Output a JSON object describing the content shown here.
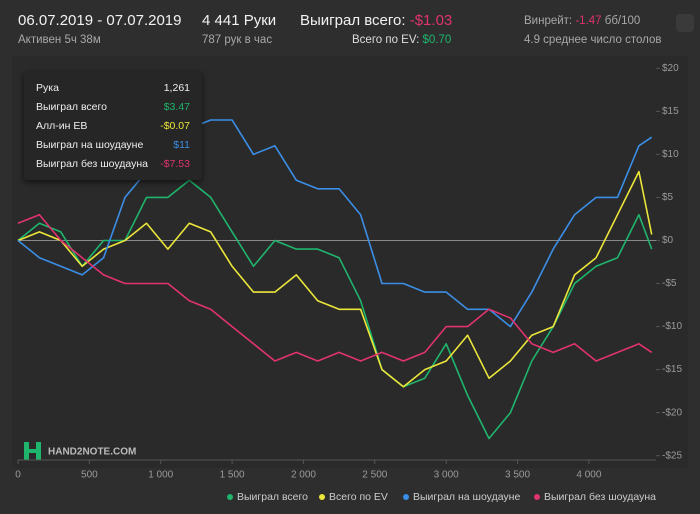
{
  "header": {
    "date_range": "06.07.2019 - 07.07.2019",
    "active": "Активен 5ч 38м",
    "hands": "4 441 Руки",
    "hands_per_hour": "787 рук в час",
    "won_label": "Выиграл всего:",
    "won_value": "-$1.03",
    "ev_label": "Всего по EV:",
    "ev_value": "$0.70",
    "winrate_label": "Винрейт:",
    "winrate_value": "-1.47",
    "winrate_unit": "бб/100",
    "tables": "4.9 среднее число столов"
  },
  "tooltip": {
    "rows": [
      [
        "Рука",
        "1,261"
      ],
      [
        "Выиграл всего",
        "$3.47"
      ],
      [
        "Алл-ин EB",
        "-$0.07"
      ],
      [
        "Выиграл на шоудауне",
        "$11"
      ],
      [
        "Выиграл без шоудауна",
        "-$7.53"
      ]
    ]
  },
  "watermark": "HAND2NOTE.COM",
  "chart_data": {
    "type": "line",
    "x": [
      0,
      150,
      300,
      450,
      600,
      750,
      900,
      1050,
      1200,
      1350,
      1500,
      1650,
      1800,
      1950,
      2100,
      2250,
      2400,
      2550,
      2700,
      2850,
      3000,
      3150,
      3300,
      3450,
      3600,
      3750,
      3900,
      4050,
      4200,
      4350,
      4440
    ],
    "series": [
      {
        "name": "Выиграл всего",
        "color": "#1fb56d",
        "values": [
          0,
          2,
          1,
          -3,
          0,
          0,
          5,
          5,
          7,
          5,
          1,
          -3,
          0,
          -1,
          -1,
          -2,
          -7,
          -15,
          -17,
          -16,
          -12,
          -18,
          -23,
          -20,
          -14,
          -10,
          -5,
          -3,
          -2,
          3,
          -1
        ]
      },
      {
        "name": "Всего по EV",
        "color": "#ece63a",
        "values": [
          0,
          1,
          0,
          -3,
          -1,
          0,
          2,
          -1,
          2,
          1,
          -3,
          -6,
          -6,
          -4,
          -7,
          -8,
          -8,
          -15,
          -17,
          -15,
          -14,
          -11,
          -16,
          -14,
          -11,
          -10,
          -4,
          -2,
          3,
          8,
          0.7
        ]
      },
      {
        "name": "Выиграл на шоудауне",
        "color": "#3b8ee6",
        "values": [
          0,
          -2,
          -3,
          -4,
          -2,
          5,
          8,
          12,
          13,
          14,
          14,
          10,
          11,
          7,
          6,
          6,
          3,
          -5,
          -5,
          -6,
          -6,
          -8,
          -8,
          -10,
          -6,
          -1,
          3,
          5,
          5,
          11,
          12
        ]
      },
      {
        "name": "Выиграл без шоудауна",
        "color": "#e0336f",
        "values": [
          2,
          3,
          0,
          -2,
          -4,
          -5,
          -5,
          -5,
          -7,
          -8,
          -10,
          -12,
          -14,
          -13,
          -14,
          -13,
          -14,
          -13,
          -14,
          -13,
          -10,
          -10,
          -8,
          -9,
          -12,
          -13,
          -12,
          -14,
          -13,
          -12,
          -13
        ]
      }
    ],
    "xlim": [
      0,
      4470
    ],
    "xticks": [
      0,
      500,
      {
        "value": 1000,
        "label": "1 000"
      },
      {
        "value": 1500,
        "label": "1 500"
      },
      {
        "value": 2000,
        "label": "2 000"
      },
      {
        "value": 2500,
        "label": "2 500"
      },
      {
        "value": 3000,
        "label": "3 000"
      },
      {
        "value": 3500,
        "label": "3 500"
      },
      {
        "value": 4000,
        "label": "4 000"
      }
    ],
    "ylim": [
      -25.5,
      20.5
    ],
    "yticks": [
      {
        "value": 20,
        "label": "$20"
      },
      {
        "value": 15,
        "label": "$15"
      },
      {
        "value": 10,
        "label": "$10"
      },
      {
        "value": 5,
        "label": "$5"
      },
      {
        "value": 0,
        "label": "$0"
      },
      {
        "value": -5,
        "label": "-$5"
      },
      {
        "value": -10,
        "label": "-$10"
      },
      {
        "value": -15,
        "label": "-$15"
      },
      {
        "value": -20,
        "label": "-$20"
      },
      {
        "value": -25,
        "label": "-$25"
      }
    ],
    "zero_line": true
  }
}
